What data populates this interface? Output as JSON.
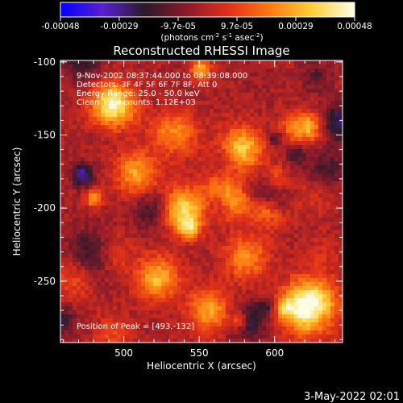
{
  "colorbar": {
    "ticks": [
      "-0.00048",
      "-0.00029",
      "-9.7e-05",
      "9.7e-05",
      "0.00029",
      "0.00048"
    ],
    "units_parts": [
      "(photons cm",
      "-2",
      " s",
      "-1",
      " asec",
      "-2",
      ")"
    ],
    "colors": [
      "#0000ff",
      "#5a1fd0",
      "#2a1a2a",
      "#8a1a2a",
      "#e0301a",
      "#ff7a10",
      "#ffd03a",
      "#ffffe6"
    ]
  },
  "chart_data": {
    "type": "heatmap",
    "title": "Reconstructed RHESSI Image",
    "xlabel": "Heliocentric X (arcsec)",
    "ylabel": "Heliocentric Y (arcsec)",
    "xlim": [
      458,
      645
    ],
    "ylim": [
      -292,
      -99
    ],
    "xticks": [
      500,
      550,
      600
    ],
    "yticks": [
      -100,
      -150,
      -200,
      -250
    ],
    "value_range": [
      -0.00048,
      0.00048
    ],
    "annotations": [
      "9-Nov-2002 08:37:44.000 to 08:39:08.000",
      "Detectors: 3F 4F 5F 6F 7F 8F, Att 0",
      "Energy Range: 25.0 - 50.0 keV",
      "Clean   Total counts: 1.12E+03"
    ],
    "peak_label": "Position of Peak = [493,-132]",
    "peak_position": [
      493,
      -132
    ]
  },
  "footer": {
    "date": "3-May-2022 02:01"
  }
}
